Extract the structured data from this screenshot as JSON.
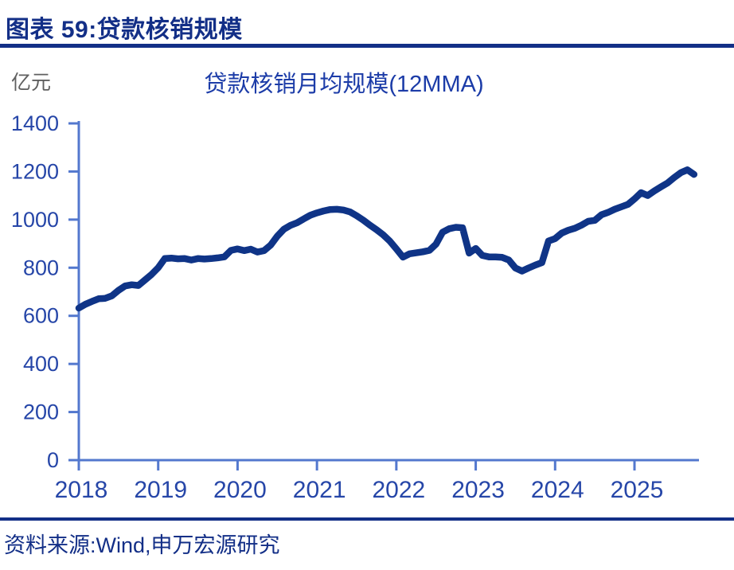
{
  "header": {
    "title": "图表 59:贷款核销规模"
  },
  "footer": {
    "source": "资料来源:Wind,申万宏源研究"
  },
  "colors": {
    "navy": "#132F87",
    "line": "#0F3487",
    "axis": "#5378CE",
    "tick_label": "#2646A8",
    "chart_title": "#1C3CA8",
    "unit_gray": "#606060"
  },
  "chart_data": {
    "type": "line",
    "title": "贷款核销月均规模(12MMA)",
    "unit_label": "亿元",
    "ylabel": "亿元",
    "xlabel": "",
    "ylim": [
      0,
      1400
    ],
    "yticks": [
      0,
      200,
      400,
      600,
      800,
      1000,
      1200,
      1400
    ],
    "xticks": [
      "2018",
      "2019",
      "2020",
      "2021",
      "2022",
      "2023",
      "2024",
      "2025"
    ],
    "x_start": "2018-01",
    "x_end": "2025-10",
    "frequency": "monthly",
    "grid": false,
    "legend": "none",
    "series": [
      {
        "name": "贷款核销月均规模(12MMA)",
        "values": [
          632,
          648,
          660,
          671,
          673,
          683,
          706,
          724,
          729,
          726,
          749,
          772,
          800,
          838,
          840,
          837,
          838,
          832,
          838,
          836,
          838,
          841,
          845,
          872,
          878,
          871,
          877,
          865,
          871,
          894,
          931,
          960,
          976,
          987,
          1003,
          1018,
          1028,
          1036,
          1042,
          1043,
          1040,
          1032,
          1016,
          998,
          977,
          958,
          937,
          911,
          878,
          844,
          858,
          862,
          866,
          872,
          898,
          948,
          962,
          968,
          966,
          861,
          880,
          851,
          845,
          845,
          843,
          832,
          799,
          786,
          799,
          811,
          821,
          911,
          921,
          944,
          956,
          964,
          977,
          993,
          997,
          1020,
          1030,
          1043,
          1053,
          1063,
          1086,
          1112,
          1100,
          1119,
          1136,
          1152,
          1175,
          1195,
          1207,
          1188
        ]
      }
    ]
  }
}
